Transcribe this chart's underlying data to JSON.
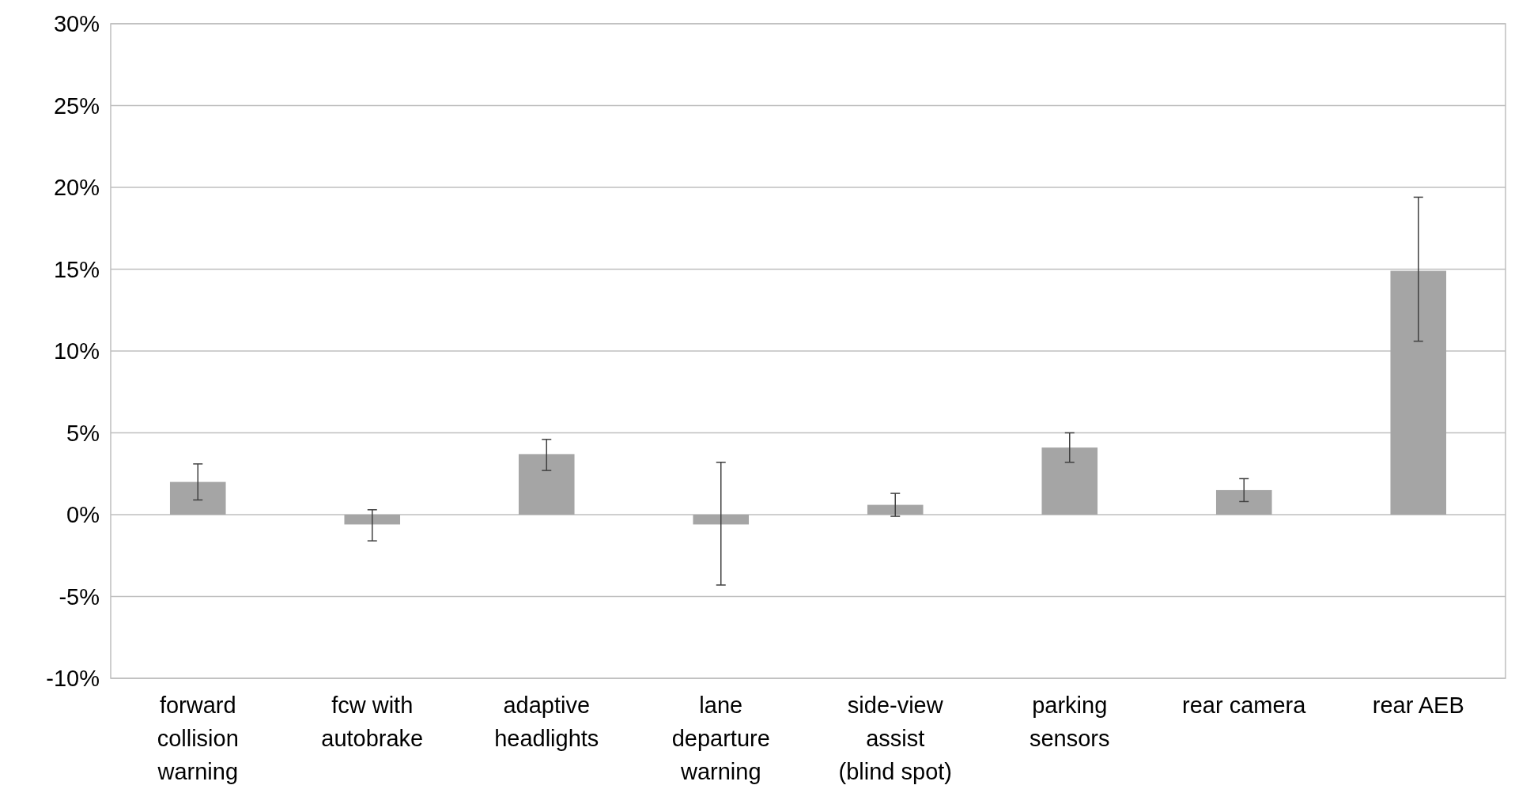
{
  "chart_data": {
    "type": "bar",
    "categories": [
      "forward collision warning",
      "fcw with autobrake",
      "adaptive headlights",
      "lane departure warning",
      "side-view assist (blind spot)",
      "parking sensors",
      "rear camera",
      "rear AEB"
    ],
    "values": [
      2.0,
      -0.6,
      3.7,
      -0.6,
      0.6,
      4.1,
      1.5,
      14.9
    ],
    "errors": [
      [
        0.9,
        3.1
      ],
      [
        -1.6,
        0.3
      ],
      [
        2.7,
        4.6
      ],
      [
        -4.3,
        3.2
      ],
      [
        -0.1,
        1.3
      ],
      [
        3.2,
        5.0
      ],
      [
        0.8,
        2.2
      ],
      [
        10.6,
        19.4
      ]
    ],
    "color": "#a5a5a5",
    "ylim": [
      -10,
      30
    ],
    "yticks": [
      {
        "value": -10,
        "label": "-10%"
      },
      {
        "value": -5,
        "label": "-5%"
      },
      {
        "value": 0,
        "label": "0%"
      },
      {
        "value": 5,
        "label": "5%"
      },
      {
        "value": 10,
        "label": "10%"
      },
      {
        "value": 15,
        "label": "15%"
      },
      {
        "value": 20,
        "label": "20%"
      },
      {
        "value": 25,
        "label": "25%"
      },
      {
        "value": 30,
        "label": "30%"
      }
    ],
    "grid": "y"
  }
}
